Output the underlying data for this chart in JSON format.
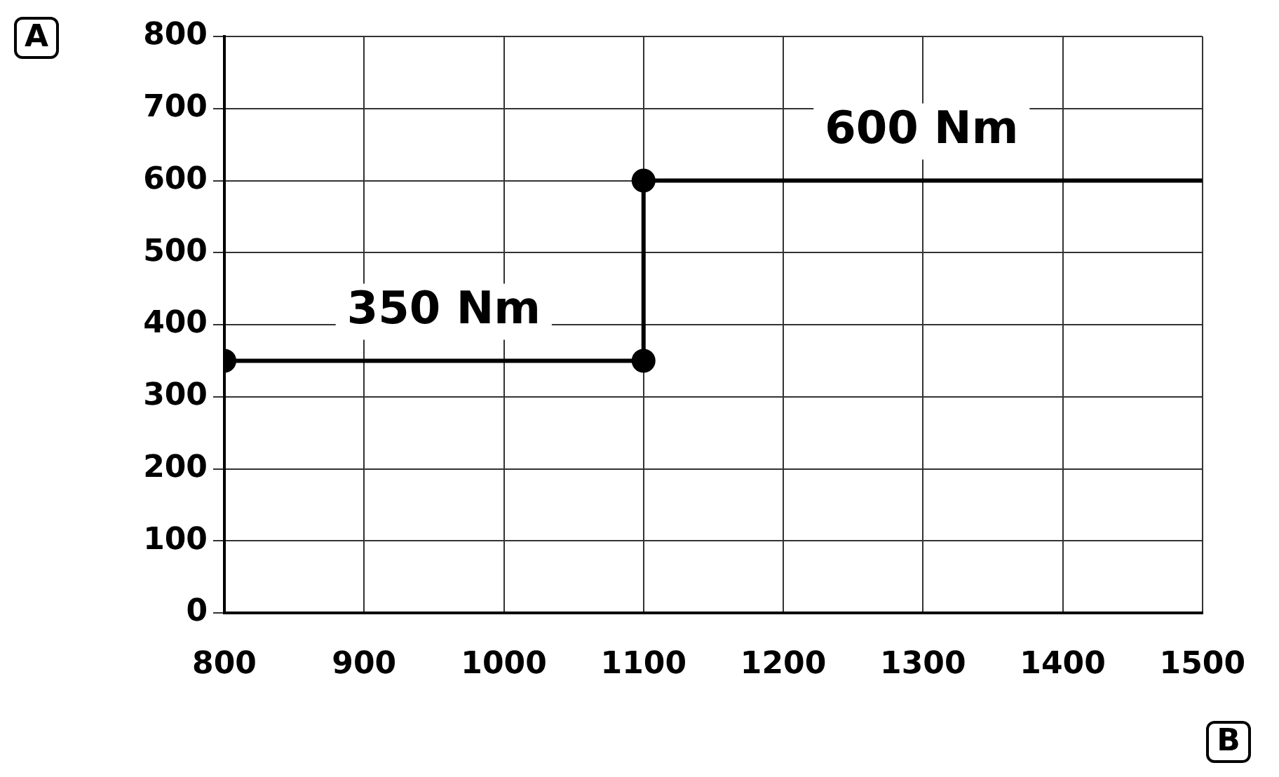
{
  "chart_data": {
    "type": "line",
    "xlabel": "B",
    "ylabel": "A",
    "xlim": [
      800,
      1500
    ],
    "xticks": [
      800,
      900,
      1000,
      1100,
      1200,
      1300,
      1400,
      1500
    ],
    "ylim": [
      0,
      800
    ],
    "yticks": [
      0,
      100,
      200,
      300,
      400,
      500,
      600,
      700,
      800
    ],
    "grid": true,
    "legend": false,
    "series": [
      {
        "type": "line",
        "color": "#000000",
        "marker": "none",
        "x": [
          800,
          1100,
          1100,
          1500
        ],
        "values": [
          350,
          350,
          600,
          600
        ]
      },
      {
        "type": "scatter",
        "color": "#000000",
        "marker": "circle",
        "x": [
          800,
          1100,
          1100
        ],
        "values": [
          350,
          350,
          600
        ]
      }
    ],
    "annotations": [
      {
        "text": "350 Nm",
        "x": 957,
        "y": 350
      },
      {
        "text": "600 Nm",
        "x": 1299,
        "y": 600
      }
    ]
  }
}
